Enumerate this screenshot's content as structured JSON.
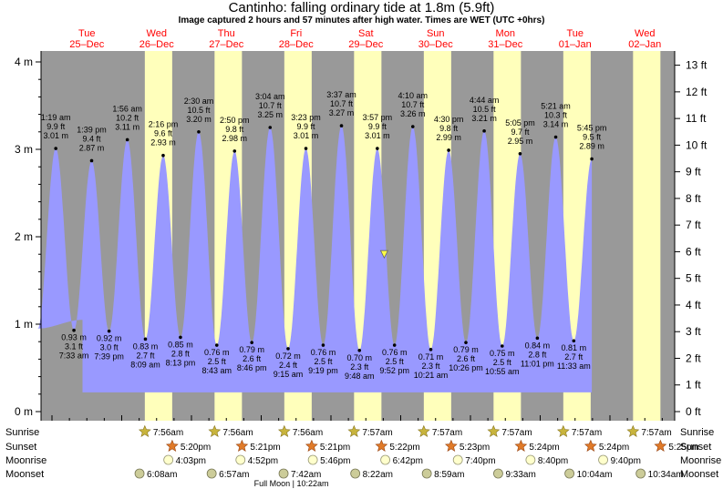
{
  "title": "Cantinho: falling  ordinary tide at 1.8m (5.9ft)",
  "subtitle": "Image captured 2 hours and 57 minutes after high water. Times are WET (UTC +0hrs)",
  "days": [
    {
      "dow": "Tue",
      "date": "25–Dec"
    },
    {
      "dow": "Wed",
      "date": "26–Dec"
    },
    {
      "dow": "Thu",
      "date": "27–Dec"
    },
    {
      "dow": "Fri",
      "date": "28–Dec"
    },
    {
      "dow": "Sat",
      "date": "29–Dec"
    },
    {
      "dow": "Sun",
      "date": "30–Dec"
    },
    {
      "dow": "Mon",
      "date": "31–Dec"
    },
    {
      "dow": "Tue",
      "date": "01–Jan"
    },
    {
      "dow": "Wed",
      "date": "02–Jan"
    }
  ],
  "chart_data": {
    "type": "area",
    "title": "Cantinho: falling  ordinary tide at 1.8m (5.9ft)",
    "ylabel_left_unit": "m",
    "ylabel_right_unit": "ft",
    "ylim_m": [
      0,
      4.2
    ],
    "left_ticks": [
      "0 m",
      "1 m",
      "2 m",
      "3 m",
      "4 m"
    ],
    "right_ticks": [
      "0 ft",
      "1 ft",
      "2 ft",
      "3 ft",
      "4 ft",
      "5 ft",
      "6 ft",
      "7 ft",
      "8 ft",
      "9 ft",
      "10 ft",
      "11 ft",
      "12 ft",
      "13 ft"
    ],
    "high_tides": [
      {
        "time": "1:19 am",
        "ft": "9.9 ft",
        "m": "3.01 m",
        "value": 3.01
      },
      {
        "time": "1:39 pm",
        "ft": "9.4 ft",
        "m": "2.87 m",
        "value": 2.87
      },
      {
        "time": "1:56 am",
        "ft": "10.2 ft",
        "m": "3.11 m",
        "value": 3.11
      },
      {
        "time": "2:16 pm",
        "ft": "9.6 ft",
        "m": "2.93 m",
        "value": 2.93
      },
      {
        "time": "2:30 am",
        "ft": "10.5 ft",
        "m": "3.20 m",
        "value": 3.2
      },
      {
        "time": "2:50 pm",
        "ft": "9.8 ft",
        "m": "2.98 m",
        "value": 2.98
      },
      {
        "time": "3:04 am",
        "ft": "10.7 ft",
        "m": "3.25 m",
        "value": 3.25
      },
      {
        "time": "3:23 pm",
        "ft": "9.9 ft",
        "m": "3.01 m",
        "value": 3.01
      },
      {
        "time": "3:37 am",
        "ft": "10.7 ft",
        "m": "3.27 m",
        "value": 3.27
      },
      {
        "time": "3:57 pm",
        "ft": "9.9 ft",
        "m": "3.01 m",
        "value": 3.01
      },
      {
        "time": "4:10 am",
        "ft": "10.7 ft",
        "m": "3.26 m",
        "value": 3.26
      },
      {
        "time": "4:30 pm",
        "ft": "9.8 ft",
        "m": "2.99 m",
        "value": 2.99
      },
      {
        "time": "4:44 am",
        "ft": "10.5 ft",
        "m": "3.21 m",
        "value": 3.21
      },
      {
        "time": "5:05 pm",
        "ft": "9.7 ft",
        "m": "2.95 m",
        "value": 2.95
      },
      {
        "time": "5:21 am",
        "ft": "10.3 ft",
        "m": "3.14 m",
        "value": 3.14
      },
      {
        "time": "5:45 pm",
        "ft": "9.5 ft",
        "m": "2.89 m",
        "value": 2.89
      }
    ],
    "low_tides": [
      {
        "time": "7:33 am",
        "ft": "3.1 ft",
        "m": "0.93 m",
        "value": 0.93
      },
      {
        "time": "7:39 pm",
        "ft": "3.0 ft",
        "m": "0.92 m",
        "value": 0.92
      },
      {
        "time": "8:09 am",
        "ft": "2.7 ft",
        "m": "0.83 m",
        "value": 0.83
      },
      {
        "time": "8:13 pm",
        "ft": "2.8 ft",
        "m": "0.85 m",
        "value": 0.85
      },
      {
        "time": "8:43 am",
        "ft": "2.5 ft",
        "m": "0.76 m",
        "value": 0.76
      },
      {
        "time": "8:46 pm",
        "ft": "2.6 ft",
        "m": "0.79 m",
        "value": 0.79
      },
      {
        "time": "9:15 am",
        "ft": "2.4 ft",
        "m": "0.72 m",
        "value": 0.72
      },
      {
        "time": "9:19 pm",
        "ft": "2.5 ft",
        "m": "0.76 m",
        "value": 0.76
      },
      {
        "time": "9:48 am",
        "ft": "2.3 ft",
        "m": "0.70 m",
        "value": 0.7
      },
      {
        "time": "9:52 pm",
        "ft": "2.5 ft",
        "m": "0.76 m",
        "value": 0.76
      },
      {
        "time": "10:21 am",
        "ft": "2.3 ft",
        "m": "0.71 m",
        "value": 0.71
      },
      {
        "time": "10:26 pm",
        "ft": "2.6 ft",
        "m": "0.79 m",
        "value": 0.79
      },
      {
        "time": "10:55 am",
        "ft": "2.5 ft",
        "m": "0.75 m",
        "value": 0.75
      },
      {
        "time": "11:01 pm",
        "ft": "2.8 ft",
        "m": "0.84 m",
        "value": 0.84
      },
      {
        "time": "11:33 am",
        "ft": "2.7 ft",
        "m": "0.81 m",
        "value": 0.81
      }
    ],
    "current_level_m": 1.8,
    "colors": {
      "water": "#9999ff",
      "night": "#999999",
      "day": "#ffffbb",
      "red_text": "#ff0000",
      "marker": "#ffff44"
    }
  },
  "rows": {
    "sunrise_label": "Sunrise",
    "sunset_label": "Sunset",
    "moonrise_label": "Moonrise",
    "moonset_label": "Moonset",
    "sunrise": [
      "7:56am",
      "7:56am",
      "7:56am",
      "7:57am",
      "7:57am",
      "7:57am",
      "7:57am",
      "7:57am"
    ],
    "sunset": [
      "5:20pm",
      "5:21pm",
      "5:21pm",
      "5:22pm",
      "5:23pm",
      "5:24pm",
      "5:24pm",
      "5:25pm"
    ],
    "moonrise": [
      "4:03pm",
      "4:52pm",
      "5:46pm",
      "6:42pm",
      "7:40pm",
      "8:40pm",
      "9:40pm"
    ],
    "moonset": [
      "6:08am",
      "6:57am",
      "7:42am",
      "8:22am",
      "8:59am",
      "9:33am",
      "10:04am",
      "10:34am"
    ],
    "full_moon": "Full Moon | 10:22am"
  }
}
